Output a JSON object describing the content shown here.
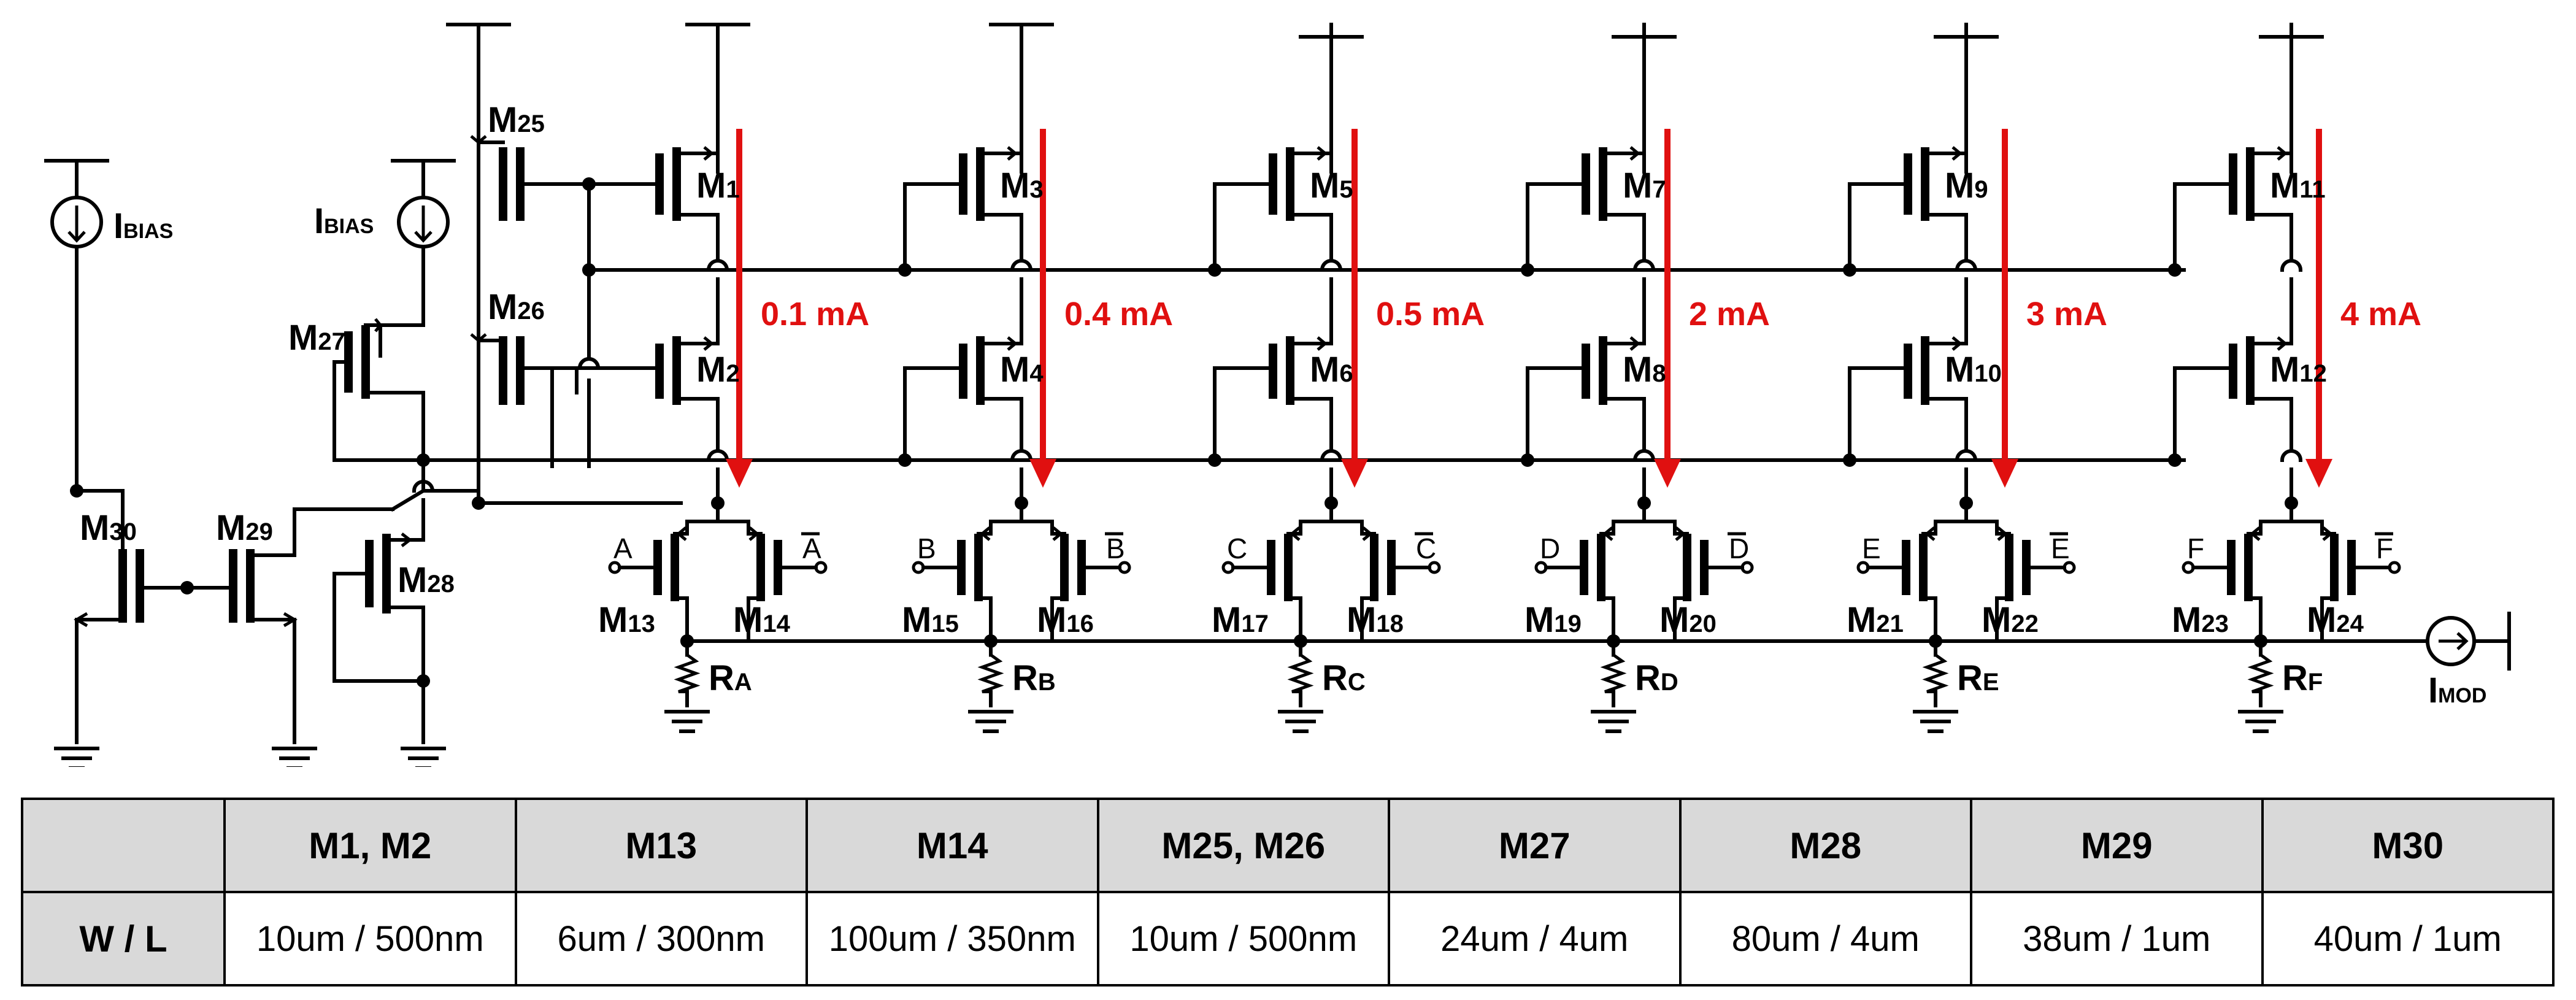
{
  "schematic": {
    "transistors": {
      "M1": {
        "base": "M",
        "sub": "1"
      },
      "M2": {
        "base": "M",
        "sub": "2"
      },
      "M3": {
        "base": "M",
        "sub": "3"
      },
      "M4": {
        "base": "M",
        "sub": "4"
      },
      "M5": {
        "base": "M",
        "sub": "5"
      },
      "M6": {
        "base": "M",
        "sub": "6"
      },
      "M7": {
        "base": "M",
        "sub": "7"
      },
      "M8": {
        "base": "M",
        "sub": "8"
      },
      "M9": {
        "base": "M",
        "sub": "9"
      },
      "M10": {
        "base": "M",
        "sub": "10"
      },
      "M11": {
        "base": "M",
        "sub": "11"
      },
      "M12": {
        "base": "M",
        "sub": "12"
      },
      "M13": {
        "base": "M",
        "sub": "13"
      },
      "M14": {
        "base": "M",
        "sub": "14"
      },
      "M15": {
        "base": "M",
        "sub": "15"
      },
      "M16": {
        "base": "M",
        "sub": "16"
      },
      "M17": {
        "base": "M",
        "sub": "17"
      },
      "M18": {
        "base": "M",
        "sub": "18"
      },
      "M19": {
        "base": "M",
        "sub": "19"
      },
      "M20": {
        "base": "M",
        "sub": "20"
      },
      "M21": {
        "base": "M",
        "sub": "21"
      },
      "M22": {
        "base": "M",
        "sub": "22"
      },
      "M23": {
        "base": "M",
        "sub": "23"
      },
      "M24": {
        "base": "M",
        "sub": "24"
      },
      "M25": {
        "base": "M",
        "sub": "25"
      },
      "M26": {
        "base": "M",
        "sub": "26"
      },
      "M27": {
        "base": "M",
        "sub": "27"
      },
      "M28": {
        "base": "M",
        "sub": "28"
      },
      "M29": {
        "base": "M",
        "sub": "29"
      },
      "M30": {
        "base": "M",
        "sub": "30"
      }
    },
    "currents": [
      "0.1 mA",
      "0.4 mA",
      "0.5 mA",
      "2 mA",
      "3 mA",
      "4 mA"
    ],
    "signals": [
      "A",
      "B",
      "C",
      "D",
      "E",
      "F"
    ],
    "resistors": [
      {
        "base": "R",
        "sub": "A"
      },
      {
        "base": "R",
        "sub": "B"
      },
      {
        "base": "R",
        "sub": "C"
      },
      {
        "base": "R",
        "sub": "D"
      },
      {
        "base": "R",
        "sub": "E"
      },
      {
        "base": "R",
        "sub": "F"
      }
    ],
    "bias_source": {
      "base": "I",
      "sub": "BIAS"
    },
    "output_source": {
      "base": "I",
      "sub": "MOD"
    },
    "colors": {
      "current_arrow": "#e01010",
      "wire": "#000000"
    }
  },
  "table": {
    "row_header": "W / L",
    "columns": [
      "M1, M2",
      "M13",
      "M14",
      "M25, M26",
      "M27",
      "M28",
      "M29",
      "M30"
    ],
    "values": [
      "10um / 500nm",
      "6um / 300nm",
      "100um / 350nm",
      "10um / 500nm",
      "24um / 4um",
      "80um / 4um",
      "38um / 1um",
      "40um / 1um"
    ]
  }
}
